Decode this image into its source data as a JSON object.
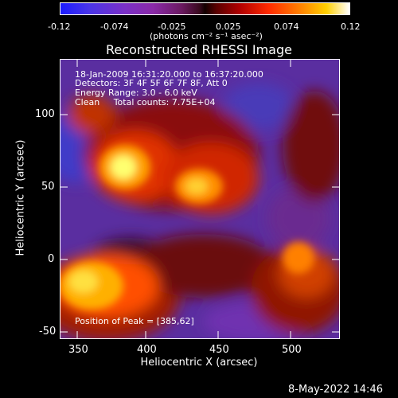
{
  "colorbar": {
    "ticks": [
      "-0.12",
      "-0.074",
      "-0.025",
      "0.025",
      "0.074",
      "0.12"
    ],
    "units_label": "(photons cm⁻² s⁻¹ asec⁻²)"
  },
  "plot": {
    "title": "Reconstructed RHESSI Image",
    "overlay": {
      "time": "18-Jan-2009 16:31:20.000 to 16:37:20.000",
      "detectors": "Detectors: 3F 4F 5F 6F 7F 8F, Att 0",
      "energy": "Energy Range: 3.0 - 6.0 keV",
      "clean": "Clean     Total counts: 7.75E+04",
      "peak": "Position of Peak = [385,62]"
    },
    "x_axis": {
      "label": "Heliocentric X (arcsec)",
      "ticks": [
        "350",
        "400",
        "450",
        "500"
      ]
    },
    "y_axis": {
      "label": "Heliocentric Y (arcsec)",
      "ticks": [
        "100",
        "50",
        "0",
        "-50"
      ]
    }
  },
  "footer": {
    "date": "8-May-2022 14:46"
  }
}
